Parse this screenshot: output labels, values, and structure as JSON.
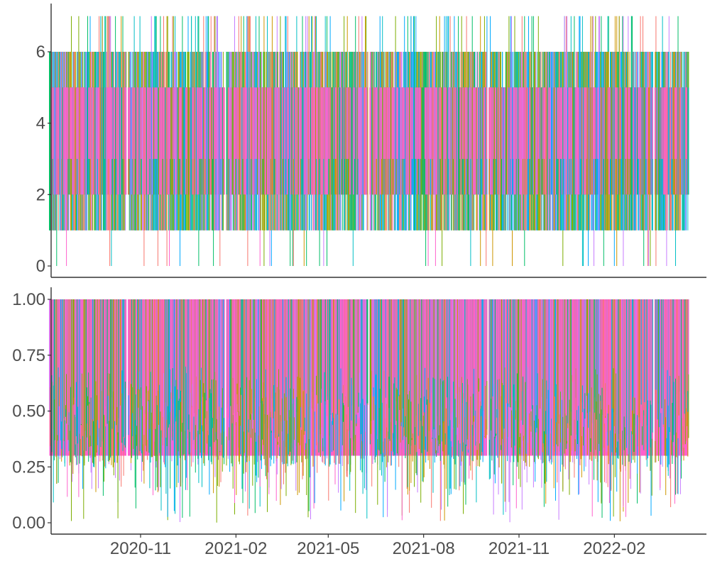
{
  "chart_data": [
    {
      "type": "line",
      "panel": "top",
      "title": "",
      "xlabel": "",
      "ylabel": "",
      "ylim": [
        0,
        7
      ],
      "yticks": [
        0,
        2,
        4,
        6
      ],
      "ytick_labels": [
        "0",
        "2",
        "4",
        "6"
      ],
      "x_range": [
        "2020-08-05",
        "2022-04-14"
      ],
      "grid": false,
      "legend": "none",
      "value_profile": {
        "typical_range": [
          2,
          5
        ],
        "common_range": [
          1,
          6
        ],
        "max": 7,
        "min": 0,
        "step": 1
      },
      "gaps": [
        "2020-10-19",
        "2021-01-22",
        "2021-06-09",
        "2021-10-02",
        "2022-03-11"
      ],
      "series_colors": [
        "#F8766D",
        "#CD9600",
        "#7CAE00",
        "#00BE67",
        "#00BFC4",
        "#00A9FF",
        "#C77CFF",
        "#FF61CC"
      ]
    },
    {
      "type": "line",
      "panel": "bottom",
      "title": "",
      "xlabel": "",
      "ylabel": "",
      "ylim": [
        0,
        1
      ],
      "yticks": [
        0,
        0.25,
        0.5,
        0.75,
        1
      ],
      "ytick_labels": [
        "0.00",
        "0.25",
        "0.50",
        "0.75",
        "1.00"
      ],
      "x_range": [
        "2020-08-05",
        "2022-04-14"
      ],
      "xticks": [
        "2020-11-01",
        "2021-02-01",
        "2021-05-01",
        "2021-08-01",
        "2021-11-01",
        "2022-02-01"
      ],
      "xtick_labels": [
        "2020-11",
        "2021-02",
        "2021-05",
        "2021-08",
        "2021-11",
        "2022-02"
      ],
      "grid": false,
      "legend": "none",
      "value_profile": {
        "typical_range": [
          0.3,
          1.0
        ],
        "common_range": [
          0.1,
          1.0
        ],
        "max": 1.0,
        "min": 0.0
      },
      "gaps": [
        "2020-10-19",
        "2021-01-22",
        "2021-06-09",
        "2021-10-02",
        "2022-03-11"
      ],
      "series_colors": [
        "#F8766D",
        "#CD9600",
        "#7CAE00",
        "#00BE67",
        "#00BFC4",
        "#00A9FF",
        "#C77CFF",
        "#FF61CC"
      ]
    }
  ]
}
